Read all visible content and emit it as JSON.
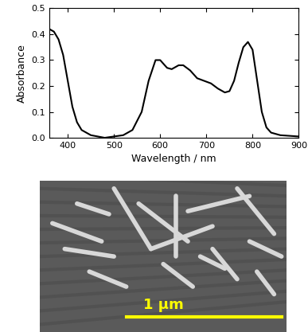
{
  "chart_data": {
    "type": "line",
    "x_label": "Wavelength / nm",
    "y_label": "Absorbance",
    "x": [
      360,
      370,
      380,
      390,
      400,
      410,
      420,
      430,
      450,
      480,
      500,
      520,
      540,
      560,
      575,
      590,
      600,
      615,
      625,
      640,
      650,
      665,
      680,
      695,
      710,
      725,
      740,
      750,
      760,
      770,
      780,
      790,
      800,
      810,
      820,
      830,
      840,
      860,
      900
    ],
    "values": [
      0.42,
      0.41,
      0.38,
      0.32,
      0.22,
      0.12,
      0.06,
      0.03,
      0.01,
      0.0,
      0.005,
      0.01,
      0.03,
      0.1,
      0.22,
      0.3,
      0.3,
      0.27,
      0.265,
      0.28,
      0.28,
      0.26,
      0.23,
      0.22,
      0.21,
      0.19,
      0.175,
      0.18,
      0.22,
      0.29,
      0.35,
      0.37,
      0.34,
      0.22,
      0.1,
      0.04,
      0.02,
      0.01,
      0.005
    ],
    "color": "#000000",
    "xlim": [
      360,
      900
    ],
    "xticks": [
      400,
      500,
      600,
      700,
      800,
      900
    ],
    "ylim": [
      0.0,
      0.5
    ],
    "yticks": [
      0.0,
      0.1,
      0.2,
      0.3,
      0.4,
      0.5
    ],
    "grid": false
  },
  "sem_image": {
    "scale_bar": "1 μm"
  }
}
